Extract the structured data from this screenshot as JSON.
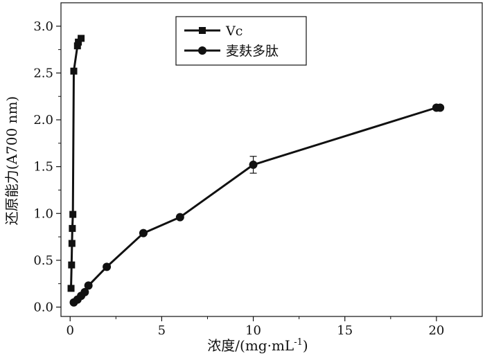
{
  "chart_data": {
    "type": "line",
    "title": "",
    "xlabel": "浓度/(mg·mL",
    "xlabel_sup": "-1",
    "xlabel_close": ")",
    "ylabel": "还原能力(A700 nm)",
    "xlim": [
      -0.5,
      22.5
    ],
    "ylim": [
      -0.1,
      3.25
    ],
    "x_ticks": [
      0,
      5,
      10,
      15,
      20
    ],
    "x_tick_labels": [
      "0",
      "5",
      "10",
      "15",
      "20"
    ],
    "y_ticks": [
      0.0,
      0.5,
      1.0,
      1.5,
      2.0,
      2.5,
      3.0
    ],
    "y_tick_labels": [
      "0.0",
      "0.5",
      "1.0",
      "1.5",
      "2.0",
      "2.5",
      "3.0"
    ],
    "grid": false,
    "legend_position": "top-center",
    "series": [
      {
        "name": "Vc",
        "marker": "square",
        "color": "#111111",
        "x": [
          0.05,
          0.08,
          0.1,
          0.12,
          0.15,
          0.2,
          0.4,
          0.45,
          0.6
        ],
        "y": [
          0.2,
          0.45,
          0.68,
          0.84,
          0.99,
          2.52,
          2.79,
          2.83,
          2.87
        ]
      },
      {
        "name": "麦麸多肽",
        "marker": "circle",
        "color": "#111111",
        "x": [
          0.2,
          0.4,
          0.6,
          0.8,
          1.0,
          2.0,
          4.0,
          6.0,
          10.0,
          20.0,
          20.2
        ],
        "y": [
          0.05,
          0.08,
          0.12,
          0.16,
          0.23,
          0.43,
          0.79,
          0.96,
          1.52,
          2.13,
          2.13
        ],
        "error": [
          0,
          0,
          0,
          0,
          0,
          0,
          0,
          0,
          0.09,
          0,
          0
        ]
      }
    ]
  }
}
